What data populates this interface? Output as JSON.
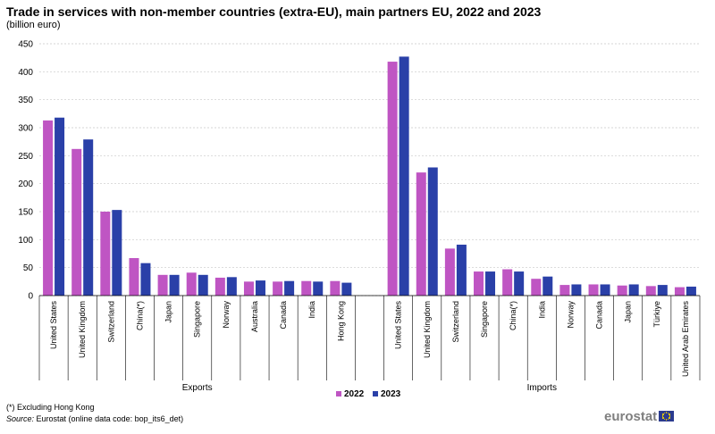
{
  "header": {
    "title": "Trade in services with non-member countries (extra-EU), main partners EU, 2022 and 2023",
    "subtitle": "(billion euro)"
  },
  "footer": {
    "footnote": "(*) Excluding Hong Kong",
    "source_label": "Source:",
    "source_text": " Eurostat (online data code: bop_its6_det)",
    "logo": "eurostat"
  },
  "colors": {
    "2022": "#bf55c3",
    "2023": "#2a40a8"
  },
  "chart_data": {
    "type": "bar",
    "title": "Trade in services with non-member countries (extra-EU), main partners EU, 2022 and 2023",
    "ylabel": "",
    "xlabel": "",
    "ylim": [
      0,
      450
    ],
    "yticks": [
      0,
      50,
      100,
      150,
      200,
      250,
      300,
      350,
      400,
      450
    ],
    "grid": true,
    "legend": "bottom-center",
    "series_names": [
      "2022",
      "2023"
    ],
    "groups": [
      {
        "name": "Exports",
        "categories": [
          "United States",
          "United Kingdom",
          "Switzerland",
          "China(*)",
          "Japan",
          "Singapore",
          "Norway",
          "Australia",
          "Canada",
          "India",
          "Hong Kong"
        ],
        "series": [
          {
            "name": "2022",
            "values": [
              313,
              262,
              150,
              67,
              37,
              41,
              32,
              25,
              25,
              26,
              26
            ]
          },
          {
            "name": "2023",
            "values": [
              318,
              279,
              153,
              58,
              37,
              37,
              33,
              27,
              26,
              25,
              23
            ]
          }
        ]
      },
      {
        "name": "Imports",
        "categories": [
          "United States",
          "United Kingdom",
          "Switzerland",
          "Singapore",
          "China(*)",
          "India",
          "Norway",
          "Canada",
          "Japan",
          "Türkiye",
          "United Arab Emirates"
        ],
        "series": [
          {
            "name": "2022",
            "values": [
              418,
              220,
              84,
              43,
              47,
              30,
              19,
              20,
              18,
              17,
              15
            ]
          },
          {
            "name": "2023",
            "values": [
              427,
              229,
              91,
              43,
              43,
              34,
              20,
              20,
              20,
              19,
              16
            ]
          }
        ]
      }
    ]
  }
}
